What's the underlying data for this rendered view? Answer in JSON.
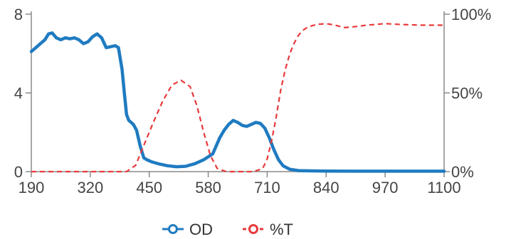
{
  "chart_data": {
    "type": "line",
    "title": "",
    "xlabel": "",
    "ylabel": "",
    "y2label": "",
    "xlim": [
      190,
      1100
    ],
    "ylim": [
      0,
      8
    ],
    "y2lim": [
      0,
      100
    ],
    "x_ticks": [
      "190",
      "320",
      "450",
      "580",
      "710",
      "840",
      "970",
      "1100"
    ],
    "y_ticks": [
      "0",
      "4",
      "8"
    ],
    "y2_ticks": [
      "0%",
      "50%",
      "100%"
    ],
    "grid": false,
    "legend_position": "bottom",
    "legend": [
      {
        "name": "OD",
        "color": "#1f7bc1",
        "dash": false
      },
      {
        "name": "%T",
        "color": "#e8393b",
        "dash": true
      }
    ],
    "series": [
      {
        "name": "OD",
        "axis": "left",
        "color": "#1f7bc1",
        "x": [
          190,
          200,
          210,
          220,
          228,
          236,
          245,
          255,
          265,
          275,
          285,
          295,
          305,
          315,
          325,
          335,
          345,
          355,
          365,
          375,
          382,
          390,
          395,
          400,
          405,
          410,
          415,
          422,
          430,
          438,
          445,
          455,
          470,
          490,
          510,
          530,
          550,
          570,
          590,
          605,
          615,
          625,
          635,
          645,
          655,
          665,
          675,
          685,
          695,
          705,
          715,
          725,
          735,
          745,
          760,
          780,
          800,
          840,
          900,
          1000,
          1100
        ],
        "values": [
          6.1,
          6.3,
          6.5,
          6.7,
          7.0,
          7.05,
          6.8,
          6.7,
          6.8,
          6.75,
          6.8,
          6.7,
          6.5,
          6.6,
          6.85,
          7.0,
          6.8,
          6.3,
          6.35,
          6.4,
          6.3,
          5.2,
          4.0,
          2.9,
          2.6,
          2.5,
          2.4,
          2.1,
          1.3,
          0.7,
          0.6,
          0.5,
          0.4,
          0.3,
          0.25,
          0.27,
          0.4,
          0.6,
          0.9,
          1.7,
          2.1,
          2.4,
          2.6,
          2.5,
          2.35,
          2.3,
          2.4,
          2.5,
          2.45,
          2.2,
          1.7,
          1.1,
          0.6,
          0.3,
          0.12,
          0.05,
          0.04,
          0.03,
          0.02,
          0.02,
          0.02
        ]
      },
      {
        "name": "%T",
        "axis": "right",
        "color": "#e8393b",
        "x": [
          190,
          300,
          400,
          420,
          440,
          460,
          480,
          500,
          520,
          540,
          555,
          570,
          585,
          600,
          620,
          650,
          680,
          700,
          710,
          720,
          730,
          740,
          750,
          760,
          770,
          780,
          790,
          800,
          820,
          840,
          860,
          880,
          900,
          930,
          970,
          1000,
          1050,
          1100
        ],
        "values": [
          0,
          0,
          0,
          4,
          18,
          32,
          45,
          55,
          58,
          54,
          42,
          25,
          10,
          2,
          0,
          0,
          0,
          2,
          8,
          20,
          35,
          52,
          65,
          75,
          82,
          87,
          90,
          92,
          93.5,
          94,
          93,
          91.5,
          92,
          93,
          94,
          93.5,
          93,
          93
        ]
      }
    ]
  }
}
